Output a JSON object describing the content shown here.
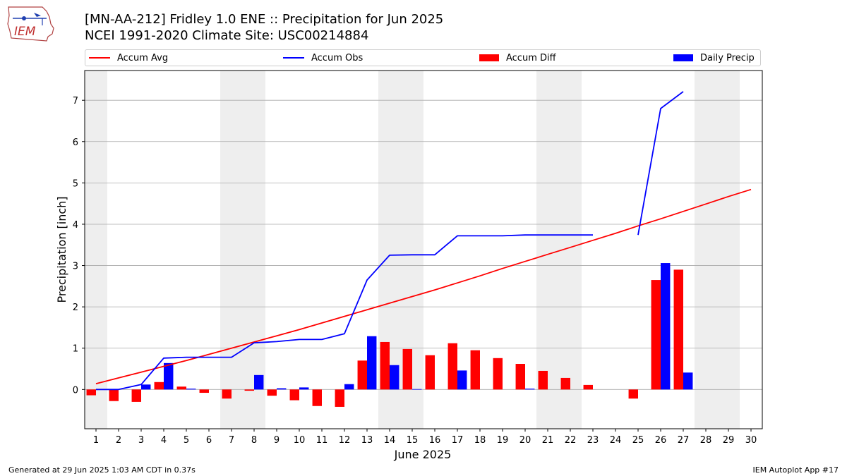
{
  "header": {
    "title_line1": "[MN-AA-212] Fridley 1.0 ENE :: Precipitation for Jun 2025",
    "title_line2": "NCEI 1991-2020 Climate Site: USC00214884",
    "logo_text": "IEM"
  },
  "legend": {
    "accum_avg": "Accum Avg",
    "accum_obs": "Accum Obs",
    "accum_diff": "Accum Diff",
    "daily_precip": "Daily Precip"
  },
  "footer": {
    "left": "Generated at 29 Jun 2025 1:03 AM CDT in 0.37s",
    "right": "IEM Autoplot App #17"
  },
  "colors": {
    "accum_avg": "#ff0000",
    "accum_obs": "#0000ff",
    "accum_diff": "#ff0000",
    "daily_precip": "#0000ff",
    "weekend_shade": "#eeeeee",
    "grid": "#aaaaaa"
  },
  "chart_data": {
    "type": "bar",
    "xlabel": "June 2025",
    "ylabel": "Precipitation [inch]",
    "xlim": [
      0.5,
      30.5
    ],
    "ylim": [
      -0.95,
      7.72
    ],
    "yticks": [
      0,
      1,
      2,
      3,
      4,
      5,
      6,
      7
    ],
    "grid": "horizontal",
    "legend_position": "top",
    "days": [
      1,
      2,
      3,
      4,
      5,
      6,
      7,
      8,
      9,
      10,
      11,
      12,
      13,
      14,
      15,
      16,
      17,
      18,
      19,
      20,
      21,
      22,
      23,
      24,
      25,
      26,
      27,
      28,
      29,
      30
    ],
    "weekend_days": [
      1,
      7,
      8,
      14,
      15,
      21,
      22,
      28,
      29
    ],
    "series": [
      {
        "name": "Accum Avg",
        "kind": "line",
        "x": [
          1,
          2,
          3,
          4,
          5,
          6,
          7,
          8,
          9,
          10,
          11,
          12,
          13,
          14,
          15,
          16,
          17,
          18,
          19,
          20,
          21,
          22,
          23,
          24,
          25,
          26,
          27,
          28,
          29,
          30
        ],
        "values": [
          0.14,
          0.28,
          0.42,
          0.56,
          0.7,
          0.85,
          1.0,
          1.15,
          1.3,
          1.45,
          1.61,
          1.77,
          1.93,
          2.09,
          2.25,
          2.41,
          2.58,
          2.75,
          2.93,
          3.1,
          3.27,
          3.44,
          3.61,
          3.78,
          3.96,
          4.13,
          4.31,
          4.49,
          4.67,
          4.84
        ]
      },
      {
        "name": "Accum Obs",
        "kind": "line",
        "x": [
          1,
          2,
          3,
          4,
          5,
          6,
          7,
          8,
          9,
          10,
          11,
          12,
          13,
          14,
          15,
          16,
          17,
          18,
          19,
          20,
          21,
          22,
          23,
          null,
          25,
          26,
          27
        ],
        "values": [
          0.0,
          0.0,
          0.12,
          0.76,
          0.78,
          0.78,
          0.78,
          1.13,
          1.16,
          1.21,
          1.21,
          1.35,
          2.65,
          3.25,
          3.26,
          3.26,
          3.72,
          3.72,
          3.72,
          3.74,
          3.74,
          3.74,
          3.74,
          null,
          3.74,
          6.8,
          7.21
        ]
      },
      {
        "name": "Accum Diff",
        "kind": "bar",
        "x": [
          1,
          2,
          3,
          4,
          5,
          6,
          7,
          8,
          9,
          10,
          11,
          12,
          13,
          14,
          15,
          16,
          17,
          18,
          19,
          20,
          21,
          22,
          23,
          25,
          26,
          27
        ],
        "values": [
          -0.14,
          -0.28,
          -0.3,
          0.18,
          0.07,
          -0.08,
          -0.22,
          -0.03,
          -0.15,
          -0.26,
          -0.4,
          -0.42,
          0.7,
          1.15,
          0.98,
          0.83,
          1.12,
          0.95,
          0.76,
          0.62,
          0.45,
          0.28,
          0.11,
          -0.22,
          2.65,
          2.9
        ]
      },
      {
        "name": "Daily Precip",
        "kind": "bar",
        "x": [
          3,
          4,
          5,
          8,
          9,
          10,
          12,
          13,
          14,
          15,
          17,
          20,
          26,
          27
        ],
        "values": [
          0.12,
          0.64,
          0.02,
          0.35,
          0.03,
          0.05,
          0.13,
          1.29,
          0.59,
          0.01,
          0.46,
          0.02,
          3.06,
          0.41
        ]
      }
    ]
  }
}
